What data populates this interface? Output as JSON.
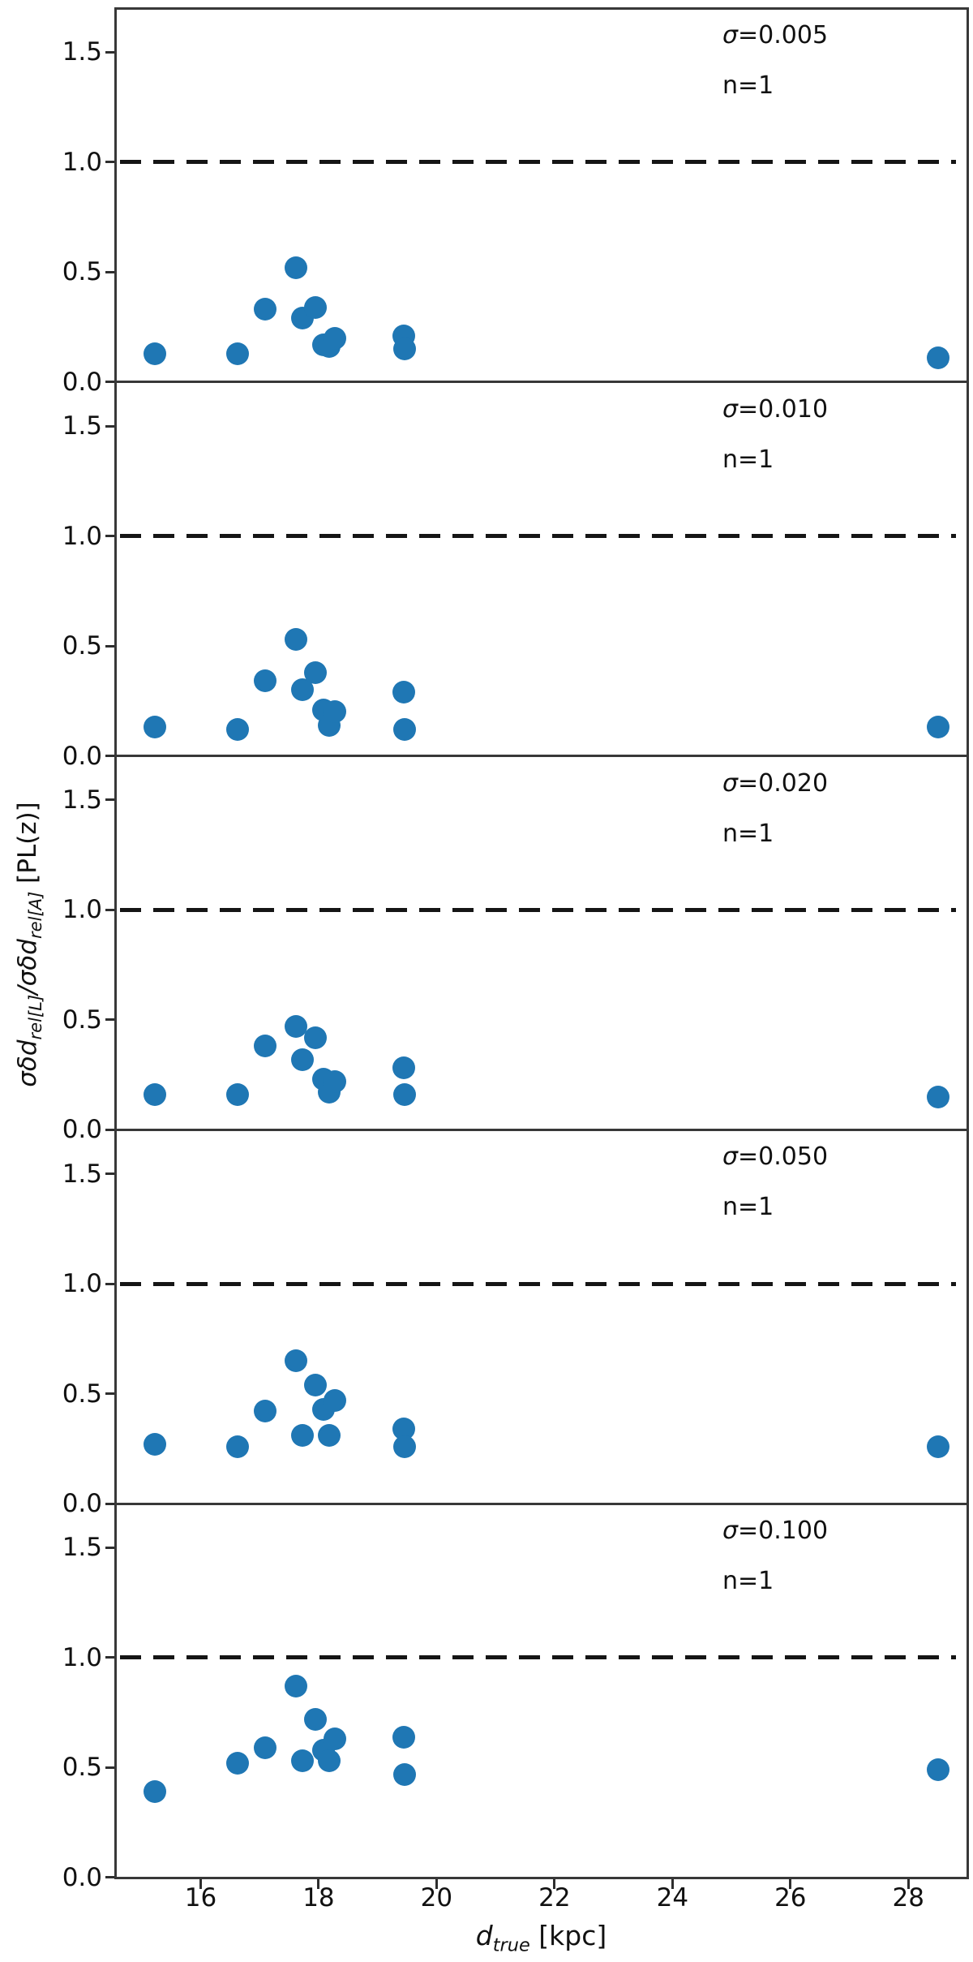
{
  "chart_data": {
    "type": "scatter",
    "n_panels": 5,
    "shared_x": true,
    "grid": false,
    "legend": "none",
    "marker_color": "#1f77b4",
    "dashed_reference_line_y": 1.0,
    "xlim": [
      14.55,
      29.0
    ],
    "ylim": [
      0.0,
      1.7
    ],
    "x_ticks": [
      16,
      18,
      20,
      22,
      24,
      26,
      28
    ],
    "x_tick_labels": [
      "16",
      "18",
      "20",
      "22",
      "24",
      "26",
      "28"
    ],
    "y_ticks": [
      0.0,
      0.5,
      1.0,
      1.5
    ],
    "y_tick_labels": [
      "0.0",
      "0.5",
      "1.0",
      "1.5"
    ],
    "xlabel": {
      "main": "d",
      "sub": "true",
      "unit": " [kpc]"
    },
    "ylabel": {
      "p1": "σδd",
      "s1": "rel[L]",
      "p2": "/σδd",
      "s2": "rel[A]",
      "p3": " [PL(z)]"
    },
    "x": [
      15.23,
      16.63,
      17.1,
      17.62,
      17.73,
      17.95,
      18.09,
      18.18,
      18.28,
      19.44,
      19.46,
      28.5
    ],
    "panels": [
      {
        "sigma_var": "σ",
        "sigma_value": "=0.005",
        "n_label": "n=1",
        "values": [
          0.13,
          0.13,
          0.33,
          0.52,
          0.29,
          0.34,
          0.17,
          0.16,
          0.2,
          0.21,
          0.15,
          0.11
        ]
      },
      {
        "sigma_var": "σ",
        "sigma_value": "=0.010",
        "n_label": "n=1",
        "values": [
          0.13,
          0.12,
          0.34,
          0.53,
          0.3,
          0.38,
          0.21,
          0.14,
          0.2,
          0.29,
          0.12,
          0.13
        ]
      },
      {
        "sigma_var": "σ",
        "sigma_value": "=0.020",
        "n_label": "n=1",
        "values": [
          0.16,
          0.16,
          0.38,
          0.47,
          0.32,
          0.42,
          0.23,
          0.17,
          0.22,
          0.28,
          0.16,
          0.15
        ]
      },
      {
        "sigma_var": "σ",
        "sigma_value": "=0.050",
        "n_label": "n=1",
        "values": [
          0.27,
          0.26,
          0.42,
          0.65,
          0.31,
          0.54,
          0.43,
          0.31,
          0.47,
          0.34,
          0.26,
          0.26
        ]
      },
      {
        "sigma_var": "σ",
        "sigma_value": "=0.100",
        "n_label": "n=1",
        "values": [
          0.39,
          0.52,
          0.59,
          0.87,
          0.53,
          0.72,
          0.58,
          0.53,
          0.63,
          0.64,
          0.47,
          0.49
        ]
      }
    ]
  }
}
